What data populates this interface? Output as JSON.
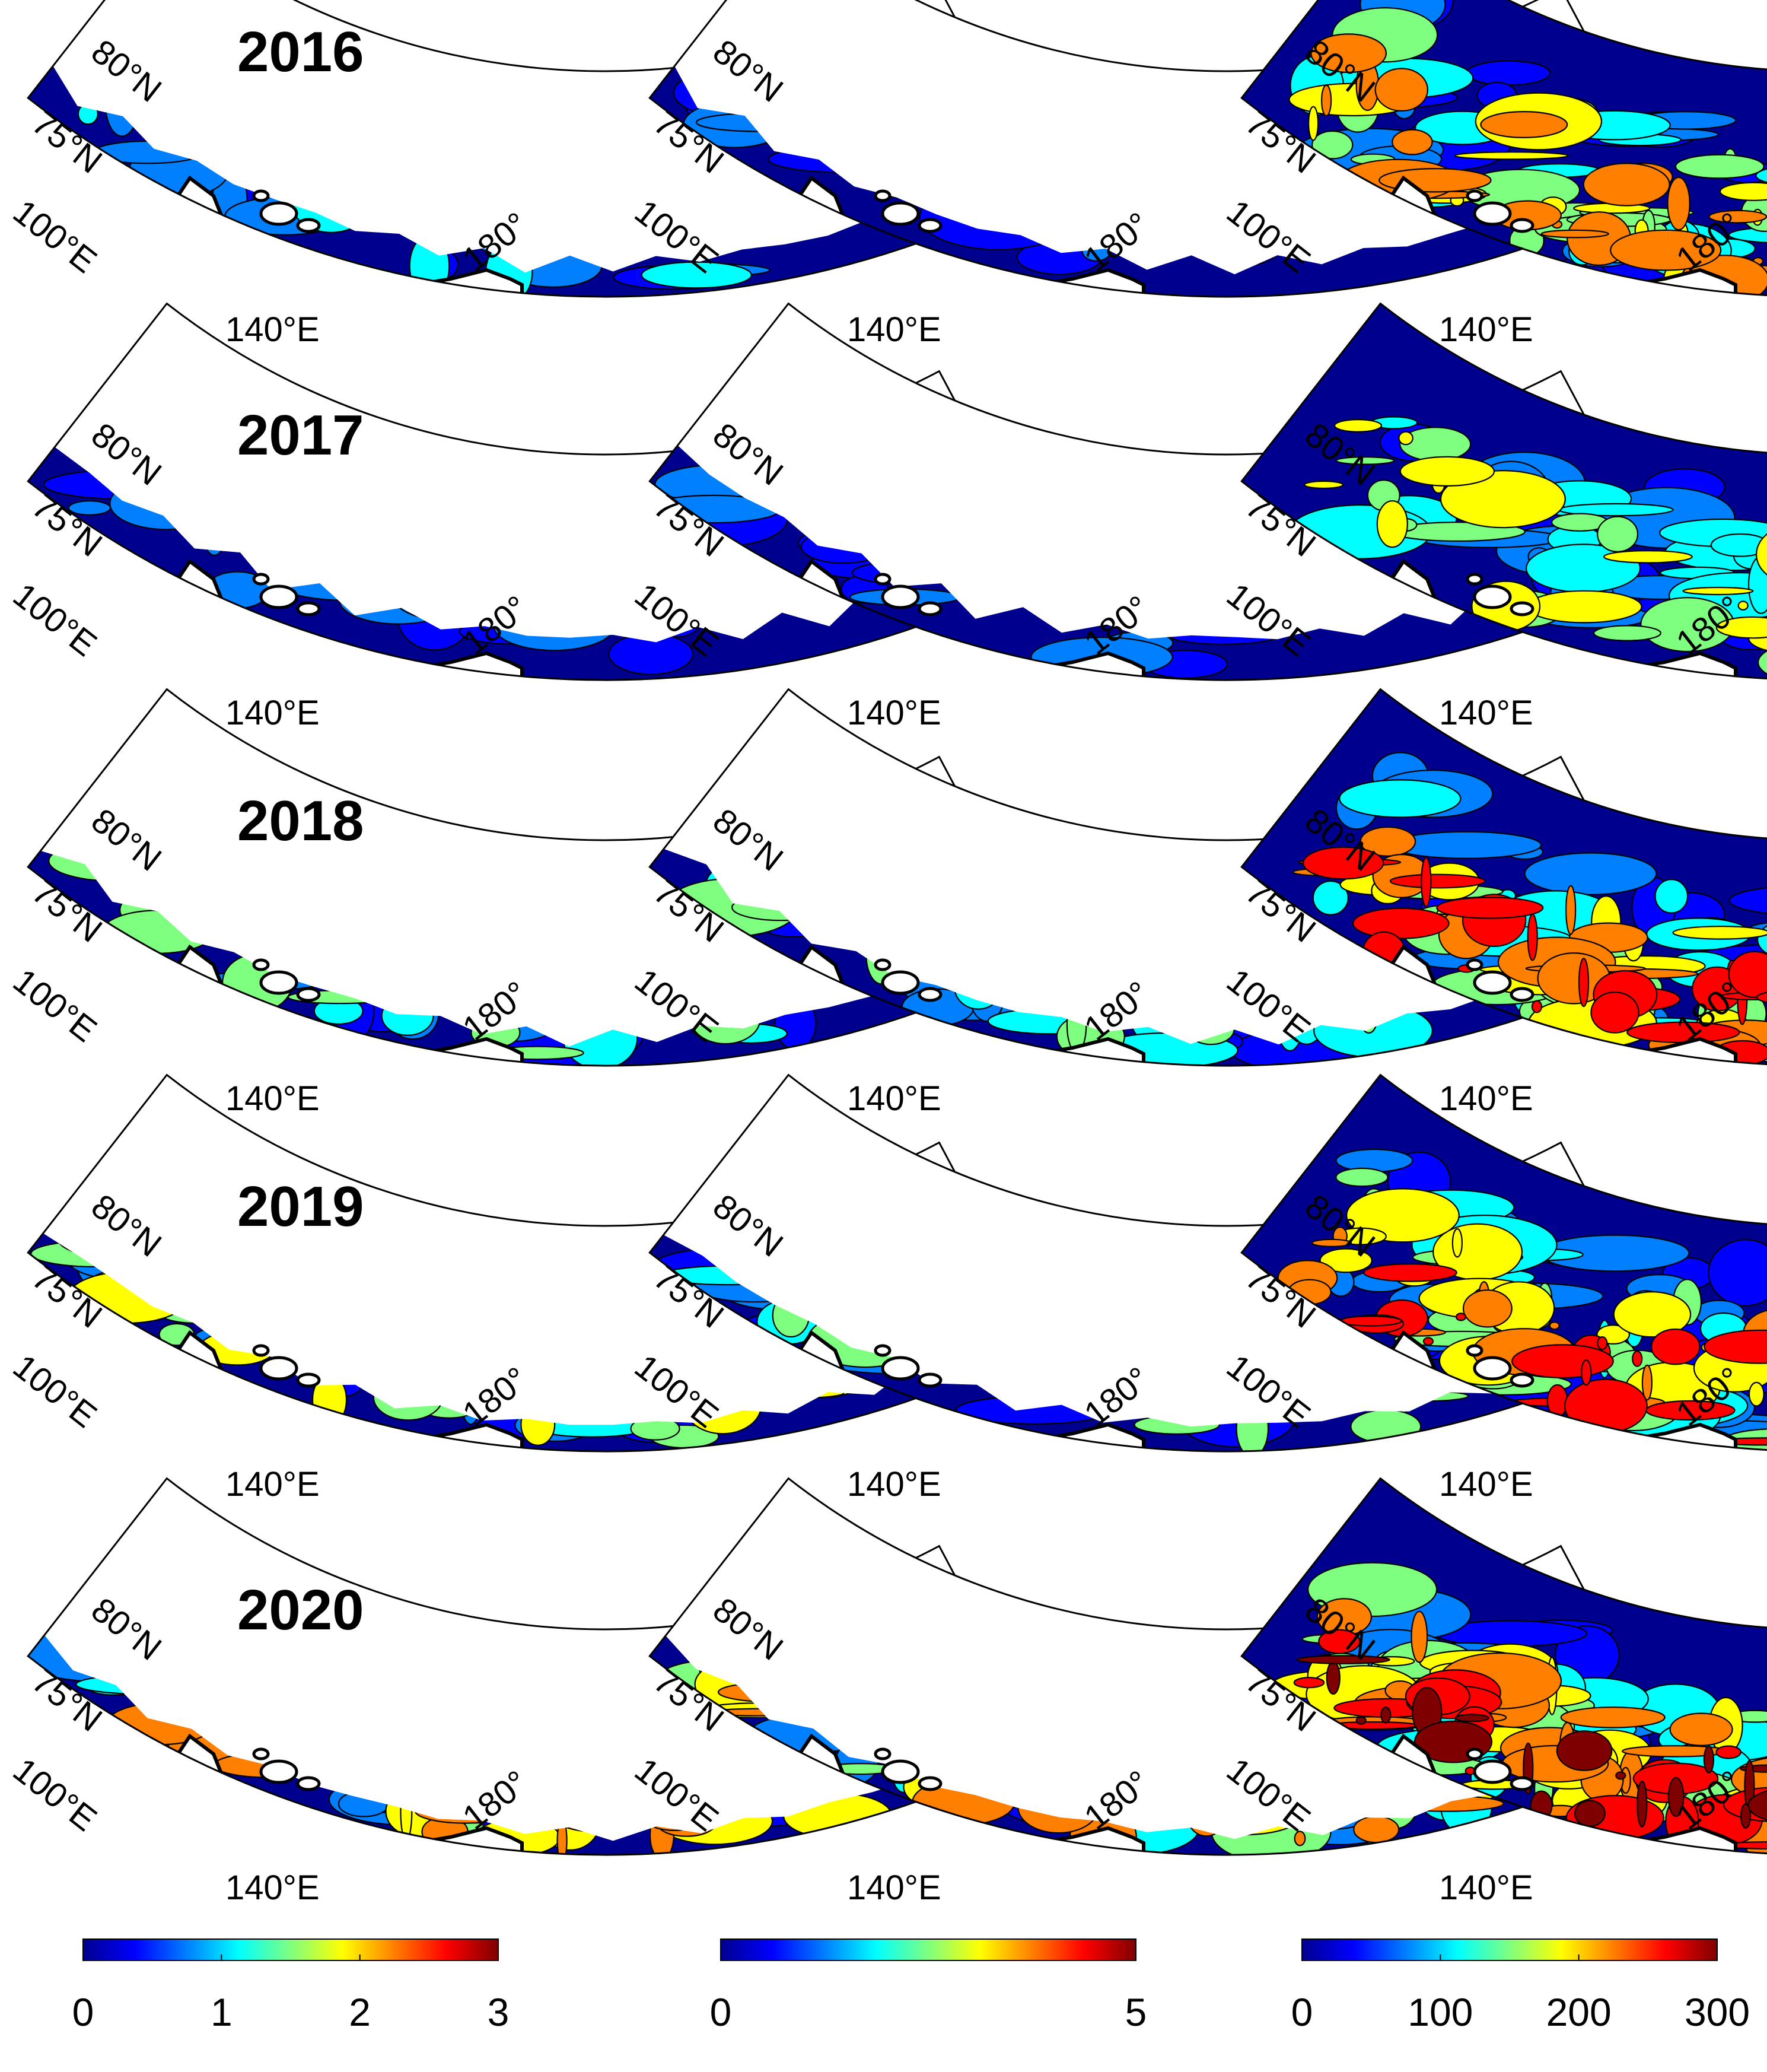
{
  "figure": {
    "years": [
      "2016",
      "2017",
      "2018",
      "2019",
      "2020"
    ],
    "columns": 3,
    "axis_labels": {
      "lat_80": "80°N",
      "lat_75": "75°N",
      "lon_100": "100°E",
      "lon_140": "140°E",
      "lon_180": "180°"
    },
    "colorbars": [
      {
        "ticks": [
          "0",
          "1",
          "2",
          "3"
        ],
        "min": 0,
        "max": 3
      },
      {
        "ticks": [
          "0",
          "5"
        ],
        "min": 0,
        "max": 5
      },
      {
        "ticks": [
          "0",
          "100",
          "200",
          "300"
        ],
        "min": 0,
        "max": 300
      }
    ],
    "colors": {
      "jet": [
        "#00008f",
        "#0000ff",
        "#007fff",
        "#00ffff",
        "#7fff7f",
        "#ffff00",
        "#ff7f00",
        "#ff0000",
        "#7f0000"
      ],
      "land": "#ffffff",
      "outline": "#000000"
    }
  }
}
